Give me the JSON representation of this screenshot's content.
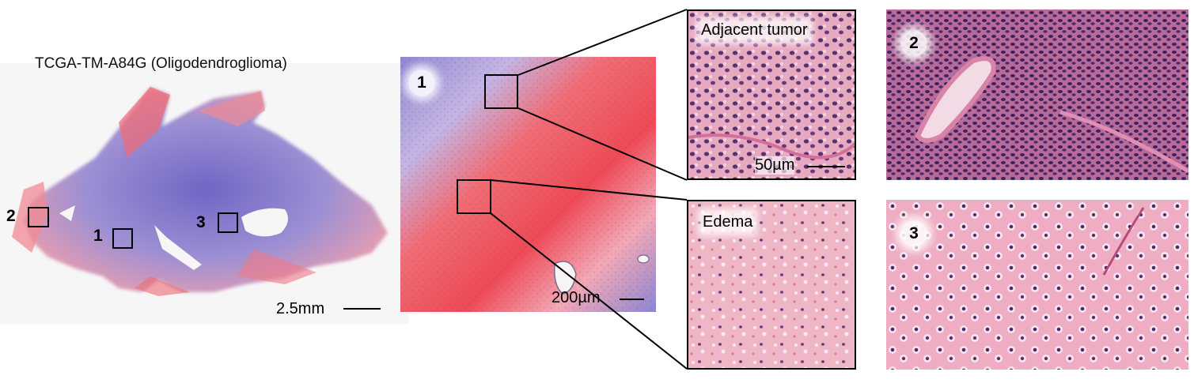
{
  "figure": {
    "slide_title": "TCGA-TM-A84G (Oligodendroglioma)",
    "overview_scale": "2.5mm",
    "region_labels": [
      "1",
      "2",
      "3"
    ],
    "zoom_panel": {
      "label": "1",
      "scale": "200µm"
    },
    "detail_panels": [
      {
        "caption": "Adjacent tumor",
        "scale": "50µm"
      },
      {
        "caption": "Edema"
      }
    ],
    "side_panels": [
      {
        "label": "2"
      },
      {
        "label": "3"
      }
    ],
    "colors": {
      "tumor_blue": "#7a70c8",
      "edema_red": "#ee4a55",
      "tissue_pink": "#e9a3b8",
      "nuclei": "#4a2a6a"
    }
  }
}
